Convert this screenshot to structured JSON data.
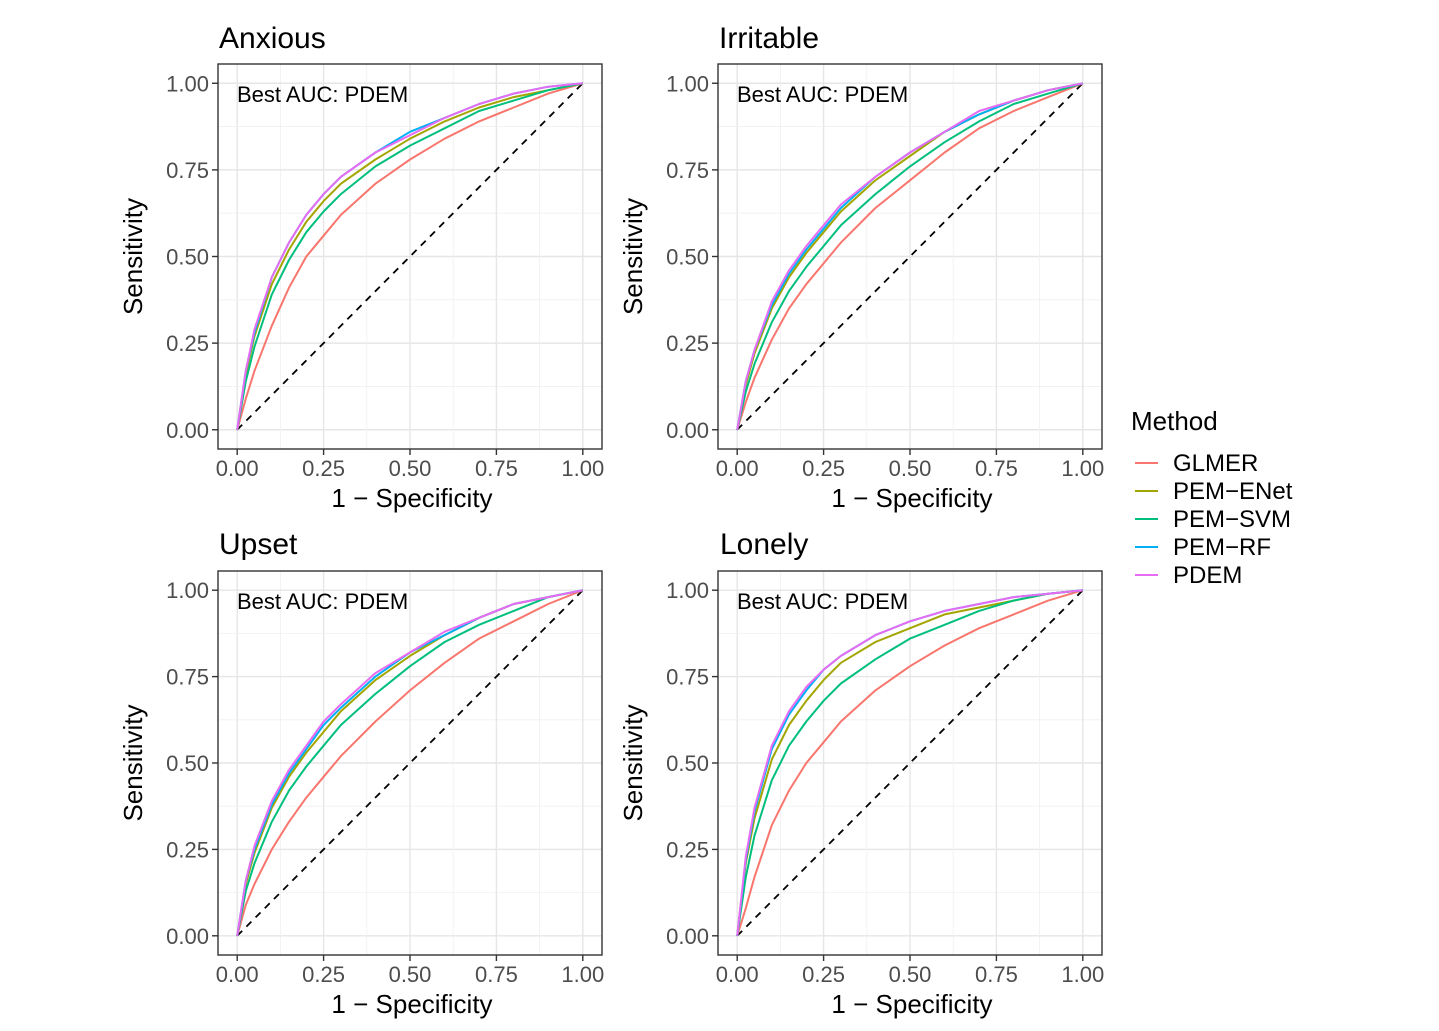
{
  "legend": {
    "title": "Method",
    "entries": [
      {
        "name": "GLMER",
        "color": "#F8766D"
      },
      {
        "name": "PEM−ENet",
        "color": "#A3A500"
      },
      {
        "name": "PEM−SVM",
        "color": "#00BF7D"
      },
      {
        "name": "PEM−RF",
        "color": "#00B0F6"
      },
      {
        "name": "PDEM",
        "color": "#E76BF3"
      }
    ]
  },
  "chart_data": [
    {
      "type": "line",
      "title": "Anxious",
      "annotation": "Best AUC: PDEM",
      "xlabel": "1 − Specificity",
      "ylabel": "Sensitivity",
      "xlim": [
        0,
        1
      ],
      "ylim": [
        0,
        1
      ],
      "xticks": [
        "0.00",
        "0.25",
        "0.50",
        "0.75",
        "1.00"
      ],
      "yticks": [
        "0.00",
        "0.25",
        "0.50",
        "0.75",
        "1.00"
      ],
      "grid": true,
      "reference_line": {
        "x": [
          0,
          1
        ],
        "y": [
          0,
          1
        ],
        "style": "dashed"
      },
      "x": [
        0,
        0.025,
        0.05,
        0.1,
        0.15,
        0.2,
        0.25,
        0.3,
        0.4,
        0.5,
        0.6,
        0.7,
        0.8,
        0.9,
        1
      ],
      "series": [
        {
          "name": "GLMER",
          "values": [
            0,
            0.09,
            0.17,
            0.3,
            0.41,
            0.5,
            0.56,
            0.62,
            0.71,
            0.78,
            0.84,
            0.89,
            0.93,
            0.97,
            1
          ]
        },
        {
          "name": "PEM−ENet",
          "values": [
            0,
            0.16,
            0.27,
            0.42,
            0.52,
            0.6,
            0.66,
            0.71,
            0.78,
            0.84,
            0.89,
            0.93,
            0.96,
            0.98,
            1
          ]
        },
        {
          "name": "PEM−SVM",
          "values": [
            0,
            0.14,
            0.24,
            0.39,
            0.49,
            0.57,
            0.63,
            0.68,
            0.76,
            0.82,
            0.87,
            0.92,
            0.95,
            0.98,
            1
          ]
        },
        {
          "name": "PEM−RF",
          "values": [
            0,
            0.17,
            0.28,
            0.44,
            0.54,
            0.62,
            0.68,
            0.73,
            0.8,
            0.86,
            0.9,
            0.94,
            0.97,
            0.99,
            1
          ]
        },
        {
          "name": "PDEM",
          "values": [
            0,
            0.17,
            0.29,
            0.44,
            0.54,
            0.62,
            0.68,
            0.73,
            0.8,
            0.85,
            0.9,
            0.94,
            0.97,
            0.99,
            1
          ]
        }
      ]
    },
    {
      "type": "line",
      "title": "Irritable",
      "annotation": "Best AUC: PDEM",
      "xlabel": "1 − Specificity",
      "ylabel": "Sensitivity",
      "xlim": [
        0,
        1
      ],
      "ylim": [
        0,
        1
      ],
      "xticks": [
        "0.00",
        "0.25",
        "0.50",
        "0.75",
        "1.00"
      ],
      "yticks": [
        "0.00",
        "0.25",
        "0.50",
        "0.75",
        "1.00"
      ],
      "grid": true,
      "reference_line": {
        "x": [
          0,
          1
        ],
        "y": [
          0,
          1
        ],
        "style": "dashed"
      },
      "x": [
        0,
        0.025,
        0.05,
        0.1,
        0.15,
        0.2,
        0.25,
        0.3,
        0.4,
        0.5,
        0.6,
        0.7,
        0.8,
        0.9,
        1
      ],
      "series": [
        {
          "name": "GLMER",
          "values": [
            0,
            0.08,
            0.15,
            0.26,
            0.35,
            0.42,
            0.48,
            0.54,
            0.64,
            0.72,
            0.8,
            0.87,
            0.92,
            0.96,
            1
          ]
        },
        {
          "name": "PEM−ENet",
          "values": [
            0,
            0.13,
            0.22,
            0.35,
            0.44,
            0.51,
            0.57,
            0.63,
            0.72,
            0.79,
            0.86,
            0.91,
            0.95,
            0.98,
            1
          ]
        },
        {
          "name": "PEM−SVM",
          "values": [
            0,
            0.11,
            0.19,
            0.31,
            0.4,
            0.47,
            0.53,
            0.59,
            0.68,
            0.76,
            0.83,
            0.89,
            0.94,
            0.97,
            1
          ]
        },
        {
          "name": "PEM−RF",
          "values": [
            0,
            0.14,
            0.23,
            0.36,
            0.45,
            0.52,
            0.58,
            0.64,
            0.73,
            0.8,
            0.86,
            0.91,
            0.95,
            0.98,
            1
          ]
        },
        {
          "name": "PDEM",
          "values": [
            0,
            0.14,
            0.23,
            0.37,
            0.46,
            0.53,
            0.59,
            0.65,
            0.73,
            0.8,
            0.86,
            0.92,
            0.95,
            0.98,
            1
          ]
        }
      ]
    },
    {
      "type": "line",
      "title": "Upset",
      "annotation": "Best AUC: PDEM",
      "xlabel": "1 − Specificity",
      "ylabel": "Sensitivity",
      "xlim": [
        0,
        1
      ],
      "ylim": [
        0,
        1
      ],
      "xticks": [
        "0.00",
        "0.25",
        "0.50",
        "0.75",
        "1.00"
      ],
      "yticks": [
        "0.00",
        "0.25",
        "0.50",
        "0.75",
        "1.00"
      ],
      "grid": true,
      "reference_line": {
        "x": [
          0,
          1
        ],
        "y": [
          0,
          1
        ],
        "style": "dashed"
      },
      "x": [
        0,
        0.025,
        0.05,
        0.1,
        0.15,
        0.2,
        0.25,
        0.3,
        0.4,
        0.5,
        0.6,
        0.7,
        0.8,
        0.9,
        1
      ],
      "series": [
        {
          "name": "GLMER",
          "values": [
            0,
            0.09,
            0.15,
            0.25,
            0.33,
            0.4,
            0.46,
            0.52,
            0.62,
            0.71,
            0.79,
            0.86,
            0.91,
            0.96,
            1
          ]
        },
        {
          "name": "PEM−ENet",
          "values": [
            0,
            0.15,
            0.24,
            0.37,
            0.46,
            0.53,
            0.59,
            0.65,
            0.74,
            0.81,
            0.87,
            0.92,
            0.96,
            0.98,
            1
          ]
        },
        {
          "name": "PEM−SVM",
          "values": [
            0,
            0.13,
            0.21,
            0.33,
            0.42,
            0.49,
            0.55,
            0.61,
            0.7,
            0.78,
            0.85,
            0.9,
            0.94,
            0.98,
            1
          ]
        },
        {
          "name": "PEM−RF",
          "values": [
            0,
            0.16,
            0.25,
            0.38,
            0.47,
            0.54,
            0.61,
            0.66,
            0.75,
            0.82,
            0.87,
            0.92,
            0.96,
            0.98,
            1
          ]
        },
        {
          "name": "PDEM",
          "values": [
            0,
            0.16,
            0.26,
            0.39,
            0.48,
            0.55,
            0.62,
            0.67,
            0.76,
            0.82,
            0.88,
            0.92,
            0.96,
            0.98,
            1
          ]
        }
      ]
    },
    {
      "type": "line",
      "title": "Lonely",
      "annotation": "Best AUC: PDEM",
      "xlabel": "1 − Specificity",
      "ylabel": "Sensitivity",
      "xlim": [
        0,
        1
      ],
      "ylim": [
        0,
        1
      ],
      "xticks": [
        "0.00",
        "0.25",
        "0.50",
        "0.75",
        "1.00"
      ],
      "yticks": [
        "0.00",
        "0.25",
        "0.50",
        "0.75",
        "1.00"
      ],
      "grid": true,
      "reference_line": {
        "x": [
          0,
          1
        ],
        "y": [
          0,
          1
        ],
        "style": "dashed"
      },
      "x": [
        0,
        0.025,
        0.05,
        0.1,
        0.15,
        0.2,
        0.25,
        0.3,
        0.4,
        0.5,
        0.6,
        0.7,
        0.8,
        0.9,
        1
      ],
      "series": [
        {
          "name": "GLMER",
          "values": [
            0,
            0.08,
            0.17,
            0.32,
            0.42,
            0.5,
            0.56,
            0.62,
            0.71,
            0.78,
            0.84,
            0.89,
            0.93,
            0.97,
            1
          ]
        },
        {
          "name": "PEM−ENet",
          "values": [
            0,
            0.21,
            0.34,
            0.51,
            0.61,
            0.68,
            0.74,
            0.79,
            0.85,
            0.89,
            0.93,
            0.95,
            0.97,
            0.99,
            1
          ]
        },
        {
          "name": "PEM−SVM",
          "values": [
            0,
            0.17,
            0.29,
            0.45,
            0.55,
            0.62,
            0.68,
            0.73,
            0.8,
            0.86,
            0.9,
            0.94,
            0.97,
            0.99,
            1
          ]
        },
        {
          "name": "PEM−RF",
          "values": [
            0,
            0.22,
            0.36,
            0.54,
            0.64,
            0.71,
            0.77,
            0.81,
            0.87,
            0.91,
            0.94,
            0.96,
            0.98,
            0.99,
            1
          ]
        },
        {
          "name": "PDEM",
          "values": [
            0,
            0.23,
            0.37,
            0.55,
            0.65,
            0.72,
            0.77,
            0.81,
            0.87,
            0.91,
            0.94,
            0.96,
            0.98,
            0.99,
            1
          ]
        }
      ]
    }
  ]
}
